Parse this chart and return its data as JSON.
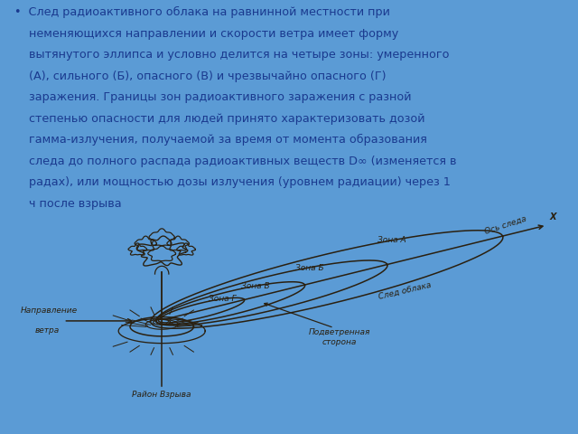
{
  "bg_color": "#5b9bd5",
  "diagram_bg": "#dcc8a0",
  "text_color": "#1a3a8f",
  "lc": "#2a2010",
  "lw": 1.1,
  "label_zona_a": "Зона А",
  "label_zona_b": "Зона Б",
  "label_zona_v": "Зона В",
  "label_zona_g": "Зона Г",
  "label_os": "Ось следа",
  "label_sled": "След облака",
  "label_napr_1": "Направление",
  "label_napr_2": "ветра",
  "label_podv_1": "Подветренная",
  "label_podv_2": "сторона",
  "label_rayon": "Район Взрыва"
}
